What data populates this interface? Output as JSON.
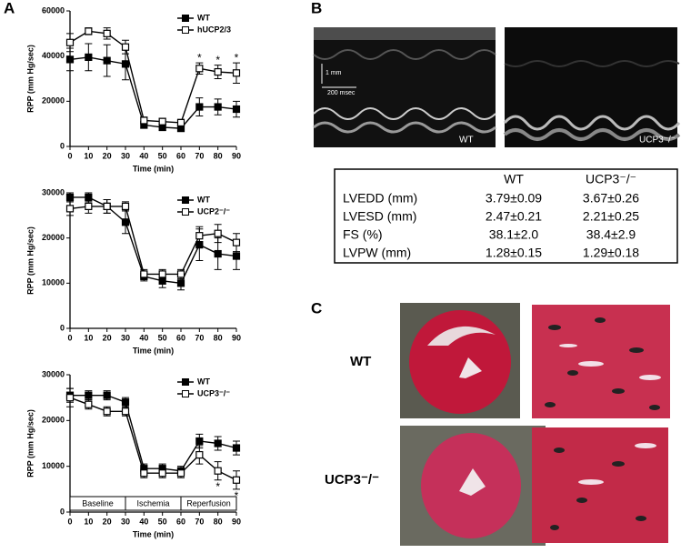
{
  "panel_labels": [
    "A",
    "B",
    "C"
  ],
  "chart_data": [
    {
      "type": "line",
      "x_label": "Time (min)",
      "y_label": "RPP (mm Hg/sec)",
      "xlim": [
        0,
        90
      ],
      "xticks": [
        0,
        10,
        20,
        30,
        40,
        50,
        60,
        70,
        80,
        90
      ],
      "ylim": [
        0,
        60000
      ],
      "yticks": [
        0,
        20000,
        40000,
        60000
      ],
      "legend": "upper right",
      "x": [
        0,
        10,
        20,
        30,
        40,
        50,
        60,
        70,
        80,
        90
      ],
      "series": [
        {
          "name": "WT",
          "color": "#000000",
          "marker": "filled",
          "values": [
            38500,
            39500,
            38000,
            36500,
            9500,
            8500,
            8000,
            17500,
            17500,
            16500
          ],
          "errors": [
            5000,
            6000,
            7000,
            7000,
            1500,
            1500,
            1000,
            4000,
            3500,
            3500
          ]
        },
        {
          "name": "hUCP2/3",
          "color": "#000000",
          "marker": "open",
          "values": [
            46000,
            51000,
            50000,
            44000,
            11500,
            11000,
            10500,
            34500,
            33000,
            32500
          ],
          "errors": [
            4000,
            1500,
            2500,
            3000,
            1500,
            1500,
            1500,
            2500,
            3000,
            4500
          ]
        }
      ],
      "annotations": [
        {
          "text": "*",
          "x": 70
        },
        {
          "text": "*",
          "x": 80
        },
        {
          "text": "*",
          "x": 90
        }
      ]
    },
    {
      "type": "line",
      "x_label": "Time (min)",
      "y_label": "RPP (mm Hg/sec)",
      "xlim": [
        0,
        90
      ],
      "xticks": [
        0,
        10,
        20,
        30,
        40,
        50,
        60,
        70,
        80,
        90
      ],
      "ylim": [
        0,
        30000
      ],
      "yticks": [
        0,
        10000,
        20000,
        30000
      ],
      "legend": "upper right",
      "x": [
        0,
        10,
        20,
        30,
        40,
        50,
        60,
        70,
        80,
        90
      ],
      "series": [
        {
          "name": "WT",
          "color": "#000000",
          "marker": "filled",
          "values": [
            29000,
            29000,
            27000,
            23500,
            11500,
            10500,
            10000,
            18500,
            16500,
            16000
          ],
          "errors": [
            1000,
            1000,
            1500,
            2500,
            1000,
            1500,
            1500,
            3500,
            3500,
            3000
          ]
        },
        {
          "name": "UCP2⁻/⁻",
          "color": "#000000",
          "marker": "open",
          "values": [
            26500,
            27000,
            27000,
            27000,
            12000,
            12000,
            12000,
            20500,
            21000,
            19000
          ],
          "errors": [
            1500,
            1500,
            1500,
            1000,
            1000,
            1000,
            1000,
            2000,
            2000,
            2000
          ]
        }
      ]
    },
    {
      "type": "line",
      "x_label": "Time (min)",
      "y_label": "RPP (mm Hg/sec)",
      "xlim": [
        0,
        90
      ],
      "xticks": [
        0,
        10,
        20,
        30,
        40,
        50,
        60,
        70,
        80,
        90
      ],
      "ylim": [
        0,
        30000
      ],
      "yticks": [
        0,
        10000,
        20000,
        30000
      ],
      "legend": "upper right",
      "x": [
        0,
        10,
        20,
        30,
        40,
        50,
        60,
        70,
        80,
        90
      ],
      "series": [
        {
          "name": "WT",
          "color": "#000000",
          "marker": "filled",
          "values": [
            25500,
            25500,
            25500,
            24000,
            9500,
            9500,
            9000,
            15500,
            15000,
            14000
          ],
          "errors": [
            1500,
            1000,
            1000,
            1000,
            1000,
            1000,
            1000,
            1500,
            1500,
            1500
          ]
        },
        {
          "name": "UCP3⁻/⁻",
          "color": "#000000",
          "marker": "open",
          "values": [
            25000,
            23500,
            22000,
            22000,
            8500,
            8500,
            8500,
            12500,
            9000,
            7000
          ],
          "errors": [
            2000,
            1000,
            1000,
            1000,
            1000,
            1000,
            1000,
            2000,
            2000,
            2000
          ]
        }
      ],
      "annotations": [
        {
          "text": "*",
          "x": 80
        },
        {
          "text": "*",
          "x": 90
        }
      ],
      "phases": [
        {
          "label": "Baseline",
          "start": 0,
          "end": 30
        },
        {
          "label": "Ischemia",
          "start": 30,
          "end": 60
        },
        {
          "label": "Reperfusion",
          "start": 60,
          "end": 90
        }
      ]
    }
  ],
  "echo": {
    "scale_labels": [
      "1 mm",
      "200 msec"
    ],
    "labels": [
      "WT",
      "UCP3⁻/⁻"
    ]
  },
  "table": {
    "columns": [
      "WT",
      "UCP3⁻/⁻"
    ],
    "rows": [
      [
        "LVEDD (mm)",
        "3.79±0.09",
        "3.67±0.26"
      ],
      [
        "LVESD (mm)",
        "2.47±0.21",
        "2.21±0.25"
      ],
      [
        "FS (%)",
        "38.1±2.0",
        "38.4±2.9"
      ],
      [
        "LVPW (mm)",
        "1.28±0.15",
        "1.29±0.18"
      ]
    ]
  },
  "histology": {
    "row_labels": [
      "WT",
      "UCP3⁻/⁻"
    ]
  }
}
